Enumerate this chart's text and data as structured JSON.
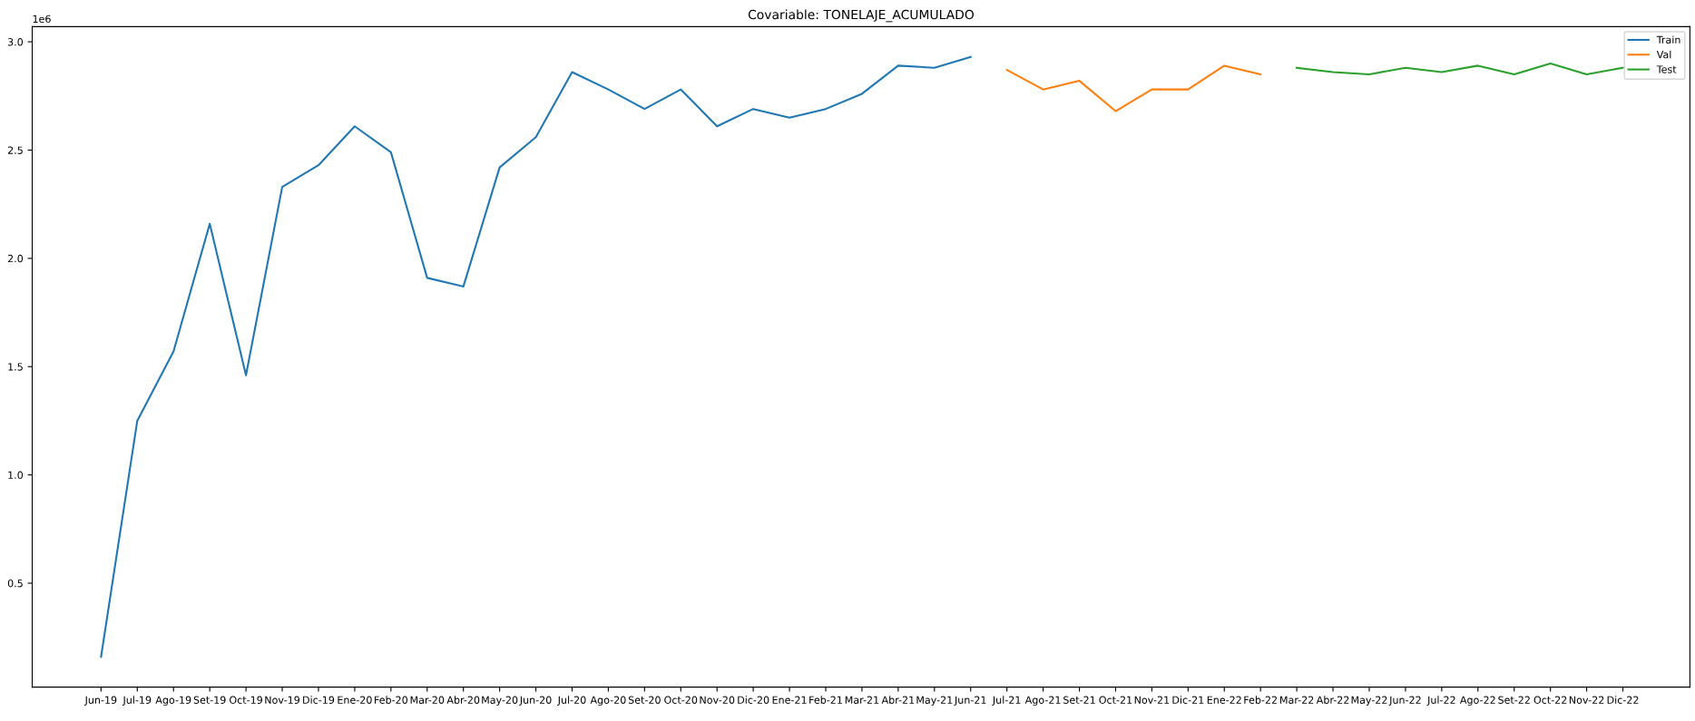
{
  "chart_data": {
    "type": "line",
    "title": "Covariable: TONELAJE_ACUMULADO",
    "categories": [
      "Jun-19",
      "Jul-19",
      "Ago-19",
      "Set-19",
      "Oct-19",
      "Nov-19",
      "Dic-19",
      "Ene-20",
      "Feb-20",
      "Mar-20",
      "Abr-20",
      "May-20",
      "Jun-20",
      "Jul-20",
      "Ago-20",
      "Set-20",
      "Oct-20",
      "Nov-20",
      "Dic-20",
      "Ene-21",
      "Feb-21",
      "Mar-21",
      "Abr-21",
      "May-21",
      "Jun-21",
      "Jul-21",
      "Ago-21",
      "Set-21",
      "Oct-21",
      "Nov-21",
      "Dic-21",
      "Ene-22",
      "Feb-22",
      "Mar-22",
      "Abr-22",
      "May-22",
      "Jun-22",
      "Jul-22",
      "Ago-22",
      "Set-22",
      "Oct-22",
      "Nov-22",
      "Dic-22"
    ],
    "series": [
      {
        "name": "Train",
        "color": "#1f77b4",
        "values": [
          0.16,
          1.25,
          1.57,
          2.16,
          1.46,
          2.33,
          2.43,
          2.61,
          2.49,
          1.91,
          1.87,
          2.42,
          2.56,
          2.86,
          2.78,
          2.69,
          2.78,
          2.61,
          2.69,
          2.65,
          2.69,
          2.76,
          2.89,
          2.88,
          2.93,
          null,
          null,
          null,
          null,
          null,
          null,
          null,
          null,
          null,
          null,
          null,
          null,
          null,
          null,
          null,
          null,
          null,
          null
        ]
      },
      {
        "name": "Val",
        "color": "#ff7f0e",
        "values": [
          null,
          null,
          null,
          null,
          null,
          null,
          null,
          null,
          null,
          null,
          null,
          null,
          null,
          null,
          null,
          null,
          null,
          null,
          null,
          null,
          null,
          null,
          null,
          null,
          null,
          2.87,
          2.78,
          2.82,
          2.68,
          2.78,
          2.78,
          2.89,
          2.85,
          null,
          null,
          null,
          null,
          null,
          null,
          null,
          null,
          null,
          null
        ]
      },
      {
        "name": "Test",
        "color": "#2ca02c",
        "values": [
          null,
          null,
          null,
          null,
          null,
          null,
          null,
          null,
          null,
          null,
          null,
          null,
          null,
          null,
          null,
          null,
          null,
          null,
          null,
          null,
          null,
          null,
          null,
          null,
          null,
          null,
          null,
          null,
          null,
          null,
          null,
          null,
          null,
          2.88,
          2.86,
          2.85,
          2.88,
          2.86,
          2.89,
          2.85,
          2.9,
          2.85,
          2.88
        ]
      }
    ],
    "ylim": [
      0.02,
      3.07
    ],
    "yticks": [
      0.5,
      {
        "value": 1,
        "label": "1.0"
      },
      1.5,
      {
        "value": 2,
        "label": "2.0"
      },
      2.5,
      {
        "value": 3,
        "label": "3.0"
      }
    ],
    "annotations": [
      "1e6"
    ],
    "grid": false,
    "legend": "top right",
    "marker": "none",
    "line_style": "solid"
  }
}
